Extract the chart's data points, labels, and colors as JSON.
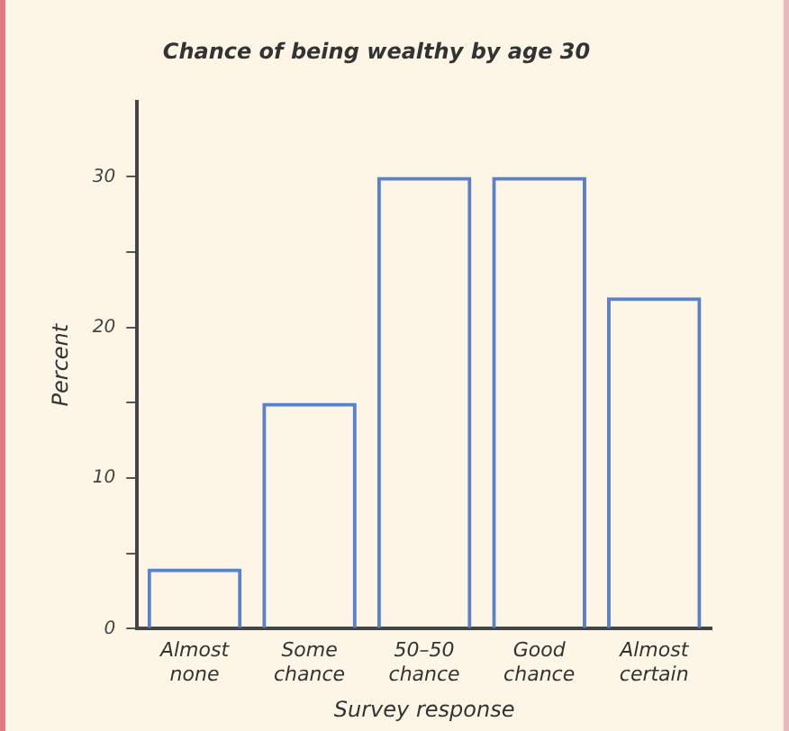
{
  "chart_data": {
    "type": "bar",
    "title": "Chance of being wealthy by age 30",
    "xlabel": "Survey response",
    "ylabel": "Percent",
    "categories": [
      "Almost none",
      "Some chance",
      "50–50 chance",
      "Good chance",
      "Almost certain"
    ],
    "values": [
      4,
      15,
      30,
      30,
      22
    ],
    "color": "#5b82c8",
    "ylim": [
      0,
      35
    ],
    "yticks": [
      0,
      {
        "value": 5,
        "label": null
      },
      10,
      {
        "value": 15,
        "label": null
      },
      20,
      {
        "value": 25,
        "label": null
      },
      30
    ],
    "grid": false,
    "legend": false
  }
}
